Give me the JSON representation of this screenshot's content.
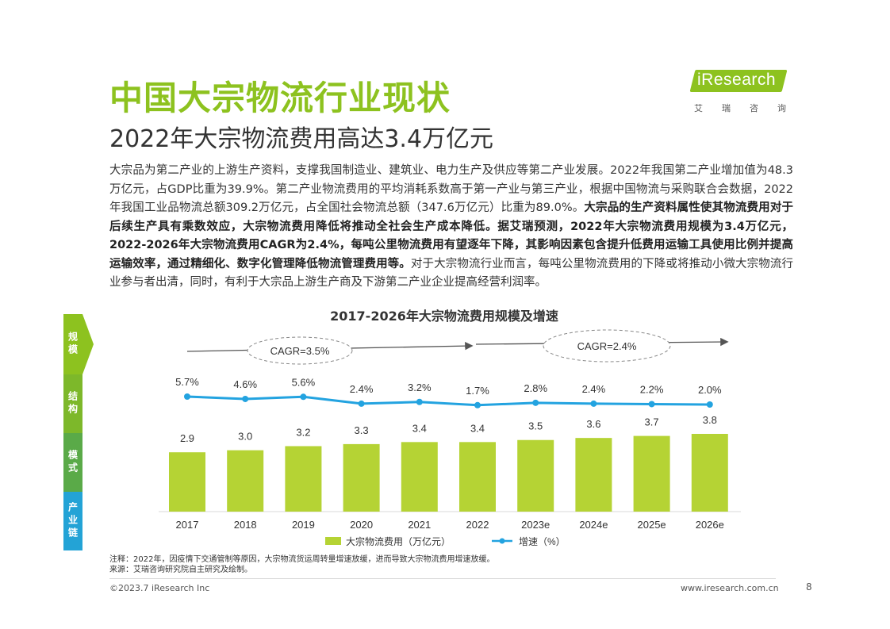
{
  "header": {
    "title": "中国大宗物流行业现状",
    "subtitle": "2022年大宗物流费用高达3.4万亿元"
  },
  "logo": {
    "text": "iResearch",
    "cn": "艾瑞咨询",
    "color": "#8dc21f"
  },
  "body": {
    "p1": "大宗品为第二产业的上游生产资料，支撑我国制造业、建筑业、电力生产及供应等第二产业发展。2022年我国第二产业增加值为48.3万亿元，占GDP比重为39.9%。第二产业物流费用的平均消耗系数高于第一产业与第三产业，根据中国物流与采购联合会数据，2022年我国工业品物流总额309.2万亿元，占全国社会物流总额（347.6万亿元）比重为89.0%。",
    "bold": "大宗品的生产资料属性使其物流费用对于后续生产具有乘数效应，大宗物流费用降低将推动全社会生产成本降低。据艾瑞预测，2022年大宗物流费用规模为3.4万亿元，2022-2026年大宗物流费用CAGR为2.4%，每吨公里物流费用有望逐年下降，其影响因素包含提升低费用运输工具使用比例并提高运输效率，通过精细化、数字化管理降低物流管理费用等。",
    "p2": "对于大宗物流行业而言，每吨公里物流费用的下降或将推动小微大宗物流行业参与者出清，同时，有利于大宗品上游生产商及下游第二产业企业提高经营利润率。"
  },
  "side_nav": {
    "items": [
      "规模",
      "结构",
      "模式",
      "产业链"
    ],
    "colors": [
      "#8dc21f",
      "#7db82a",
      "#5aaa48",
      "#23a3d6"
    ]
  },
  "chart_data": {
    "type": "bar+line",
    "title": "2017-2026年大宗物流费用规模及增速",
    "categories": [
      "2017",
      "2018",
      "2019",
      "2020",
      "2021",
      "2022",
      "2023e",
      "2024e",
      "2025e",
      "2026e"
    ],
    "series": [
      {
        "name": "大宗物流费用（万亿元）",
        "type": "bar",
        "color": "#b5d334",
        "values": [
          2.9,
          3.0,
          3.2,
          3.3,
          3.4,
          3.4,
          3.5,
          3.6,
          3.7,
          3.8
        ],
        "labels": [
          "2.9",
          "3.0",
          "3.2",
          "3.3",
          "3.4",
          "3.4",
          "3.5",
          "3.6",
          "3.7",
          "3.8"
        ]
      },
      {
        "name": "增速（%）",
        "type": "line",
        "color": "#23a3e0",
        "values": [
          5.7,
          4.6,
          5.6,
          2.4,
          3.2,
          1.7,
          2.8,
          2.4,
          2.2,
          2.0
        ],
        "labels": [
          "5.7%",
          "4.6%",
          "5.6%",
          "2.4%",
          "3.2%",
          "1.7%",
          "2.8%",
          "2.4%",
          "2.2%",
          "2.0%"
        ]
      }
    ],
    "annotations": [
      "CAGR=3.5%",
      "CAGR=2.4%"
    ],
    "legend": "bottom"
  },
  "notes": {
    "note": "注释：2022年，因疫情下交通管制等原因，大宗物流货运周转量增速放缓，进而导致大宗物流费用增速放缓。",
    "source": "来源：艾瑞咨询研究院自主研究及绘制。"
  },
  "footer": {
    "copyright": "©2023.7 iResearch Inc",
    "url": "www.iresearch.com.cn",
    "page": "8"
  }
}
